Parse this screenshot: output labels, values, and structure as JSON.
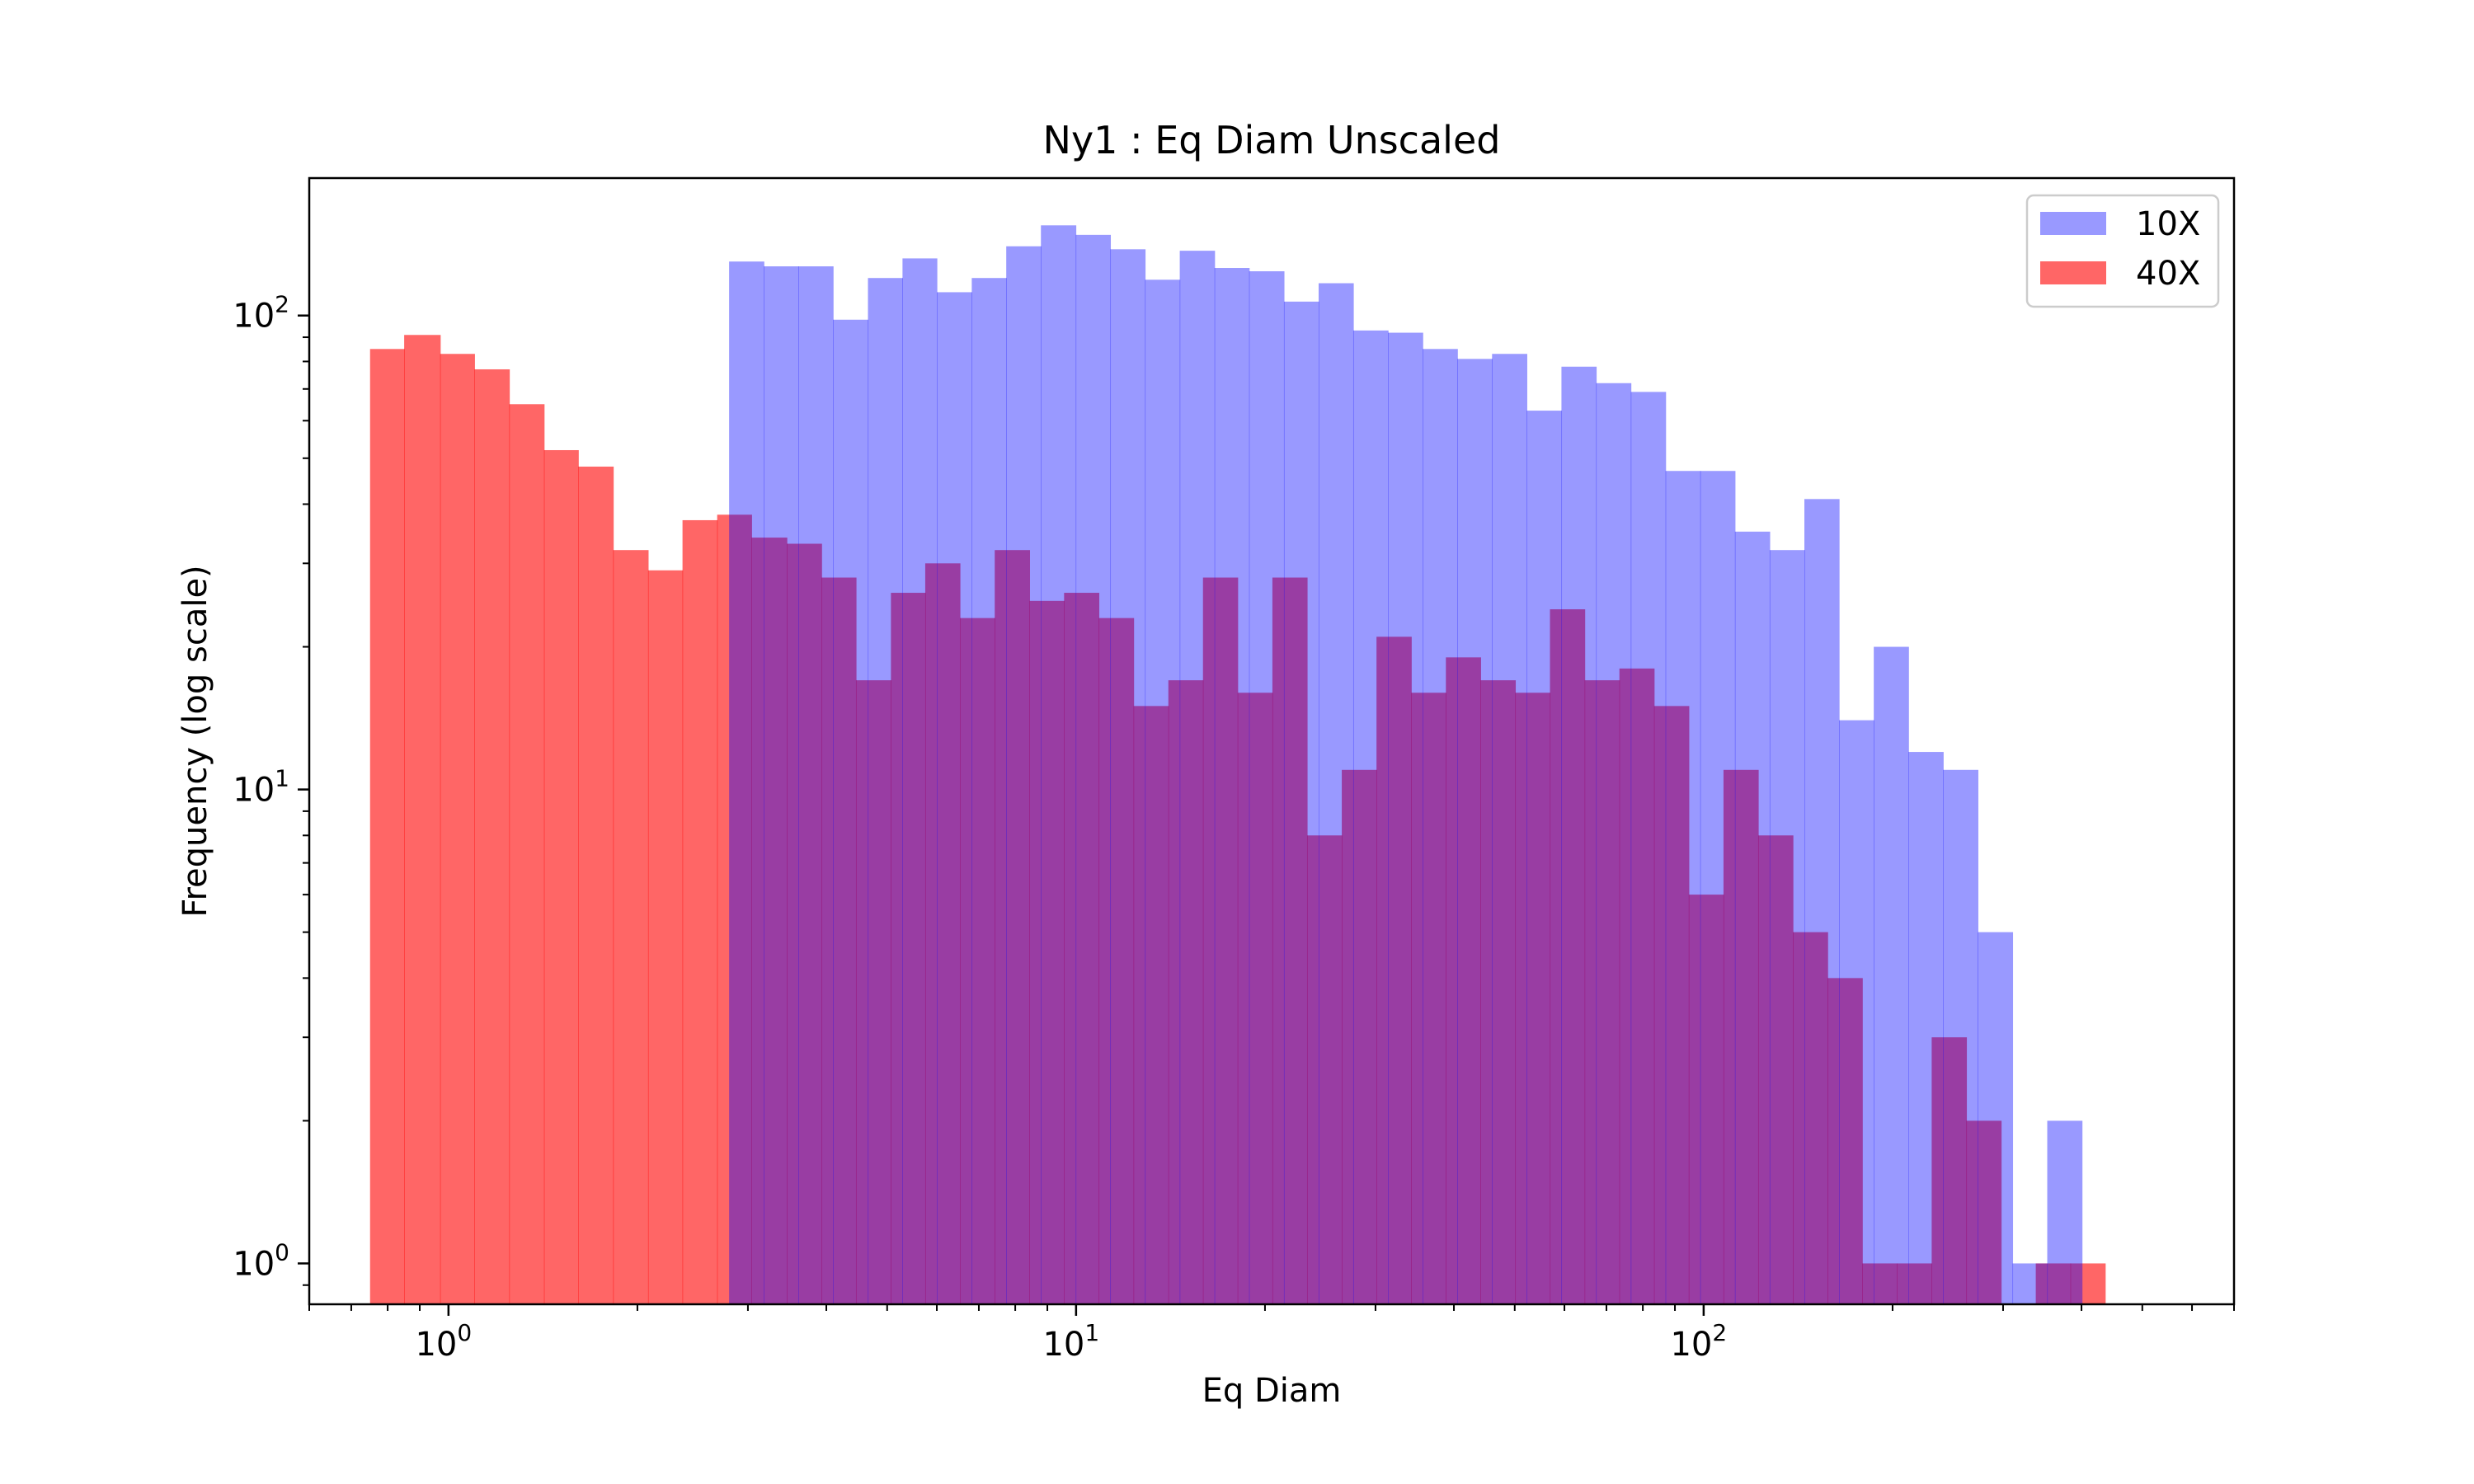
{
  "chart_data": {
    "type": "histogram",
    "title": "Ny1 : Eq Diam Unscaled",
    "xlabel": "Eq Diam",
    "ylabel": "Frequency (log scale)",
    "xscale": "log",
    "yscale": "log",
    "xlim": [
      0.6,
      700
    ],
    "ylim": [
      0.82,
      195
    ],
    "x_ticks": [
      {
        "base": "10",
        "exp": "0",
        "value": 1
      },
      {
        "base": "10",
        "exp": "1",
        "value": 10
      },
      {
        "base": "10",
        "exp": "2",
        "value": 100
      }
    ],
    "y_ticks": [
      {
        "base": "10",
        "exp": "0",
        "value": 1
      },
      {
        "base": "10",
        "exp": "1",
        "value": 10
      },
      {
        "base": "10",
        "exp": "2",
        "value": 100
      }
    ],
    "legend_position": "top-right",
    "series": [
      {
        "name": "10X",
        "color": "#0000ff",
        "opacity": 0.4,
        "bin_edges": [
          2.8,
          3.18,
          3.61,
          4.1,
          4.66,
          5.29,
          6.0,
          6.82,
          7.74,
          8.79,
          9.99,
          11.34,
          12.88,
          14.63,
          16.62,
          18.87,
          21.44,
          24.35,
          27.65,
          31.41,
          35.67,
          40.51,
          46.01,
          52.26,
          59.35,
          67.41,
          76.56,
          86.96,
          98.76,
          112.17,
          127.4,
          144.7,
          164.34,
          186.66,
          212.0,
          240.78,
          273.47,
          310.6,
          352.77,
          400.67
        ],
        "counts": [
          130,
          127,
          127,
          98,
          120,
          132,
          112,
          120,
          140,
          155,
          148,
          138,
          119,
          137,
          126,
          124,
          107,
          117,
          93,
          92,
          85,
          81,
          83,
          63,
          78,
          72,
          69,
          47,
          47,
          35,
          32,
          41,
          14,
          20,
          12,
          11,
          5,
          1,
          2
        ]
      },
      {
        "name": "40X",
        "color": "#ff0000",
        "opacity": 0.6,
        "bin_edges": [
          0.75,
          0.85,
          0.97,
          1.1,
          1.25,
          1.42,
          1.61,
          1.83,
          2.08,
          2.36,
          2.68,
          3.04,
          3.46,
          3.93,
          4.46,
          5.07,
          5.75,
          6.53,
          7.42,
          8.43,
          9.57,
          10.87,
          12.35,
          14.03,
          15.93,
          18.09,
          20.55,
          23.34,
          26.51,
          30.11,
          34.2,
          38.84,
          44.11,
          50.1,
          56.9,
          64.63,
          73.41,
          83.37,
          94.69,
          107.55,
          122.15,
          138.73,
          157.57,
          178.96,
          203.26,
          230.85,
          262.2,
          297.8,
          338.23,
          384.15,
          436.3
        ],
        "counts": [
          85,
          91,
          83,
          77,
          65,
          52,
          48,
          32,
          29,
          37,
          38,
          34,
          33,
          28,
          17,
          26,
          30,
          23,
          32,
          25,
          26,
          23,
          15,
          17,
          28,
          16,
          28,
          8,
          11,
          21,
          16,
          19,
          17,
          16,
          24,
          17,
          18,
          15,
          6,
          11,
          8,
          5,
          4,
          1,
          1,
          3,
          2,
          0,
          1,
          1
        ]
      }
    ]
  }
}
